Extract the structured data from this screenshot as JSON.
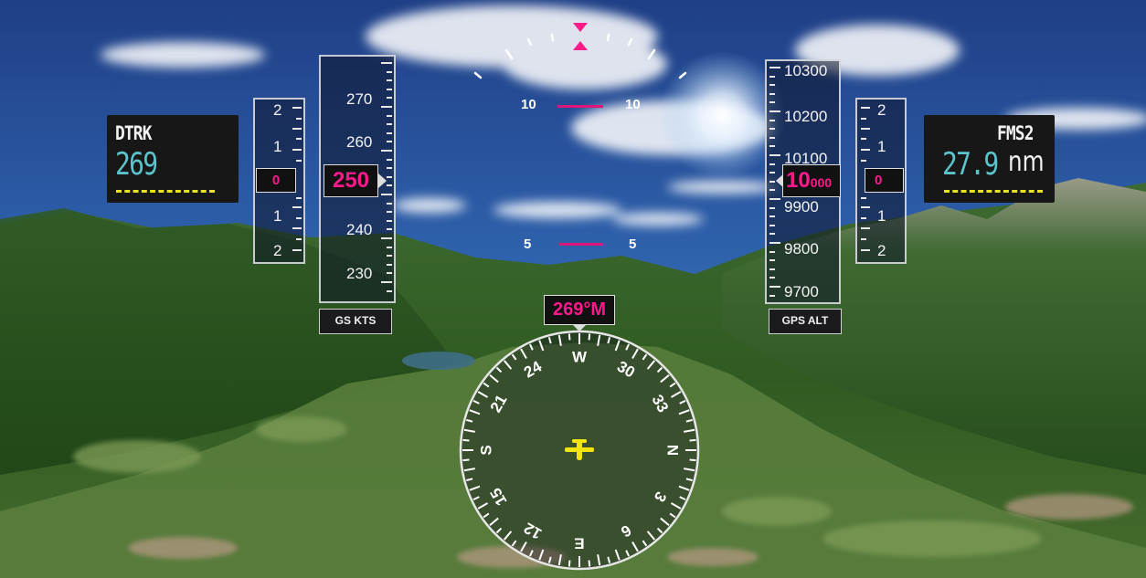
{
  "left_info": {
    "label": "DTRK",
    "value": "269"
  },
  "right_info": {
    "label": "FMS2",
    "distance": "27.9",
    "unit": "nm"
  },
  "vsi_left": {
    "upper": [
      "2",
      "1"
    ],
    "value": "0",
    "lower": [
      "1",
      "2"
    ]
  },
  "vsi_right": {
    "upper": [
      "2",
      "1"
    ],
    "value": "0",
    "lower": [
      "1",
      "2"
    ]
  },
  "speed_tape": {
    "label": "GS KTS",
    "current": "250",
    "marks": [
      "270",
      "260",
      "240",
      "230"
    ]
  },
  "alt_tape": {
    "label": "GPS ALT",
    "current_big": "10",
    "current_small": "000",
    "marks": [
      "10300",
      "10200",
      "10100",
      "9900",
      "9800",
      "9700"
    ]
  },
  "pitch_ladder": {
    "upper": {
      "left": "10",
      "right": "10"
    },
    "lower": {
      "left": "5",
      "right": "5"
    }
  },
  "heading": {
    "readout": "269°M",
    "labels": [
      "W",
      "30",
      "33",
      "N",
      "3",
      "6",
      "E",
      "12",
      "15",
      "S",
      "21",
      "24"
    ]
  },
  "colors": {
    "magenta": "#ff1a8c",
    "cyan": "#5bc4cc",
    "yellow": "#e8e31c",
    "aircraft": "#f2e40f"
  },
  "icons": {
    "aircraft": "airplane-icon"
  }
}
